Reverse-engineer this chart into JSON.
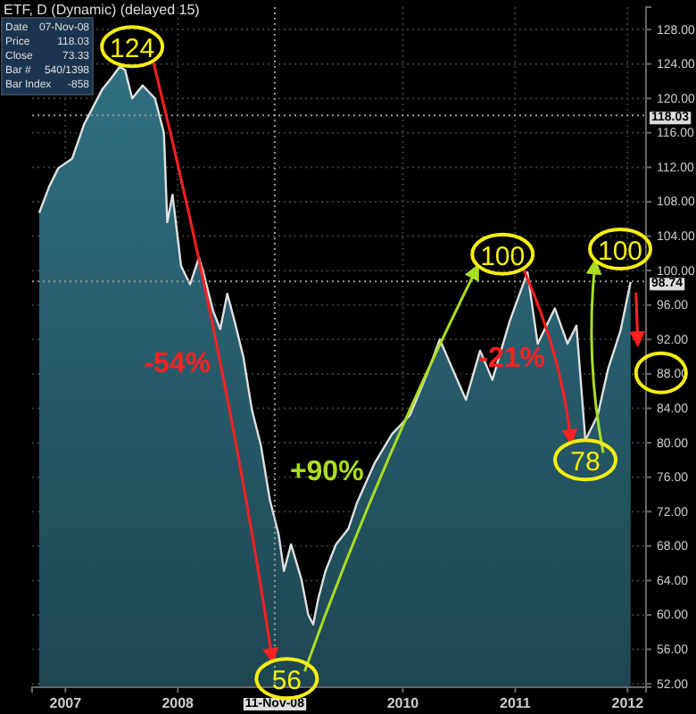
{
  "chart_data": {
    "type": "area",
    "title": "ETF, D (Dynamic) (delayed 15)",
    "x": [
      "2006-10-08",
      "2006-11-10",
      "2006-12-09",
      "2007-01-23",
      "2007-03-03",
      "2007-04-01",
      "2007-04-30",
      "2007-05-29",
      "2007-06-27",
      "2007-07-14",
      "2007-08-06",
      "2007-09-09",
      "2007-10-19",
      "2007-11-17",
      "2007-11-28",
      "2007-12-15",
      "2008-01-12",
      "2008-02-10",
      "2008-03-10",
      "2008-03-27",
      "2008-04-25",
      "2008-05-18",
      "2008-06-10",
      "2008-07-03",
      "2008-08-01",
      "2008-08-29",
      "2008-09-27",
      "2008-10-26",
      "2008-11-24",
      "2008-12-11",
      "2009-01-03",
      "2009-02-06",
      "2009-02-28",
      "2009-03-16",
      "2009-04-02",
      "2009-04-25",
      "2009-05-29",
      "2009-07-08",
      "2009-08-05",
      "2009-10-01",
      "2009-11-27",
      "2010-01-24",
      "2010-03-21",
      "2010-05-01",
      "2010-06-27",
      "2010-07-25",
      "2010-09-09",
      "2010-10-19",
      "2010-12-15",
      "2011-02-10",
      "2011-03-15",
      "2011-05-10",
      "2011-06-20",
      "2011-07-19",
      "2011-08-17",
      "2011-09-26",
      "2011-10-30",
      "2011-12-09",
      "2012-01-11"
    ],
    "series": [
      {
        "color": "#2f6f82",
        "values": [
          106.7,
          109.8,
          111.9,
          113,
          117,
          119,
          121,
          122.3,
          123.7,
          123.3,
          120,
          121.5,
          120,
          116,
          105.6,
          108.8,
          100.5,
          98.4,
          101.5,
          99.4,
          95.3,
          93.2,
          97.3,
          94.2,
          90,
          83.8,
          79.7,
          73.4,
          69.3,
          65.1,
          68.2,
          64.1,
          60,
          58.9,
          62,
          65.1,
          68.2,
          70,
          73,
          77.6,
          81,
          83.2,
          88,
          92,
          87.3,
          85,
          90.7,
          87.3,
          94.2,
          99.8,
          91.5,
          95.6,
          91.5,
          93.6,
          80.3,
          83.2,
          88.6,
          93,
          98.7
        ]
      }
    ],
    "xlim": [
      "2006-09-15",
      "2012-03-01"
    ],
    "xticks": [
      {
        "value": "2007-01-01",
        "label": "2007"
      },
      {
        "value": "2008-01-01",
        "label": "2008"
      },
      {
        "value": "2010-01-01",
        "label": "2010"
      },
      {
        "value": "2011-01-01",
        "label": "2011"
      },
      {
        "value": "2012-01-01",
        "label": "2012"
      }
    ],
    "ylim": [
      51.6,
      130.6
    ],
    "yticks": [
      {
        "value": 52,
        "label": "52.00"
      },
      {
        "value": 56,
        "label": "56.00"
      },
      {
        "value": 60,
        "label": "60.00"
      },
      {
        "value": 64,
        "label": "64.00"
      },
      {
        "value": 68,
        "label": "68.00"
      },
      {
        "value": 72,
        "label": "72.00"
      },
      {
        "value": 76,
        "label": "76.00"
      },
      {
        "value": 80,
        "label": "80.00"
      },
      {
        "value": 84,
        "label": "84.00"
      },
      {
        "value": 88,
        "label": "88.00"
      },
      {
        "value": 92,
        "label": "92.00"
      },
      {
        "value": 96,
        "label": "96.00"
      },
      {
        "value": 100,
        "label": "100.00"
      },
      {
        "value": 104,
        "label": "104.00"
      },
      {
        "value": 108,
        "label": "108.00"
      },
      {
        "value": 112,
        "label": "112.00"
      },
      {
        "value": 116,
        "label": "116.00"
      },
      {
        "value": 120,
        "label": "120.00"
      },
      {
        "value": 124,
        "label": "124.00"
      },
      {
        "value": 128,
        "label": "128.00"
      }
    ],
    "grid": true,
    "ref_lines": [
      {
        "axis": "y",
        "value": 118.03,
        "label": "118.03",
        "line_style": "dotted"
      },
      {
        "axis": "x",
        "value": "2008-11-11",
        "label": "11-Nov-08",
        "line_style": "dotted"
      },
      {
        "axis": "y",
        "value": 98.74,
        "label": "98.74",
        "line_style": "dotted"
      }
    ],
    "annotations": [
      "Date",
      "07-Nov-08",
      "Price",
      "118.03",
      "Close",
      "73.33",
      "Bar #",
      "540/1398",
      "Bar Index",
      "-858",
      {
        "text": "124",
        "x": "2007-08-06",
        "y": 126
      },
      "-54%",
      {
        "text": "56",
        "x": "2008-12-20",
        "y": 52.6
      },
      "+90%",
      {
        "text": "100",
        "x": "2010-11-21",
        "y": 101.9
      },
      "-21%",
      {
        "text": "78",
        "x": "2011-08-17",
        "y": 78
      },
      {
        "text": "100",
        "x": "2011-12-08",
        "y": 102.5
      }
    ]
  }
}
